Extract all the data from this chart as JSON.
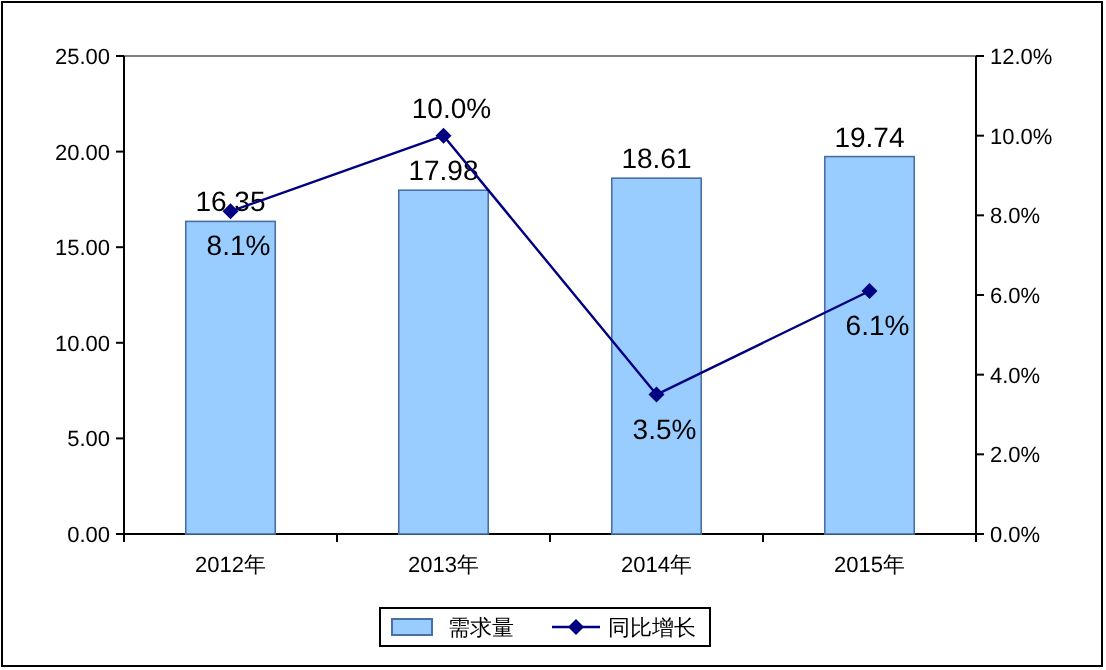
{
  "chart_data": {
    "type": "bar",
    "categories": [
      "2012年",
      "2013年",
      "2014年",
      "2015年"
    ],
    "series": [
      {
        "name": "需求量",
        "color": "#99ccff",
        "values": [
          16.35,
          17.98,
          18.61,
          19.74
        ],
        "value_labels": [
          "16.35",
          "17.98",
          "18.61",
          "19.74"
        ]
      },
      {
        "name": "同比增长",
        "type": "line",
        "axis": "y2",
        "color": "#000080",
        "marker": "diamond",
        "values": [
          8.1,
          10.0,
          3.5,
          6.1
        ],
        "value_labels": [
          "8.1%",
          "10.0%",
          "3.5%",
          "6.1%"
        ]
      }
    ],
    "ylim": [
      0,
      25
    ],
    "yticks": [
      {
        "value": 0,
        "label": "0.00"
      },
      {
        "value": 5,
        "label": "5.00"
      },
      {
        "value": 10,
        "label": "10.00"
      },
      {
        "value": 15,
        "label": "15.00"
      },
      {
        "value": 20,
        "label": "20.00"
      },
      {
        "value": 25,
        "label": "25.00"
      }
    ],
    "y2lim": [
      0,
      12
    ],
    "y2ticks": [
      {
        "value": 0,
        "label": "0.0%"
      },
      {
        "value": 2,
        "label": "2.0%"
      },
      {
        "value": 4,
        "label": "4.0%"
      },
      {
        "value": 6,
        "label": "6.0%"
      },
      {
        "value": 8,
        "label": "8.0%"
      },
      {
        "value": 10,
        "label": "10.0%"
      },
      {
        "value": 12,
        "label": "12.0%"
      }
    ],
    "legend": "bottom",
    "grid": false
  }
}
